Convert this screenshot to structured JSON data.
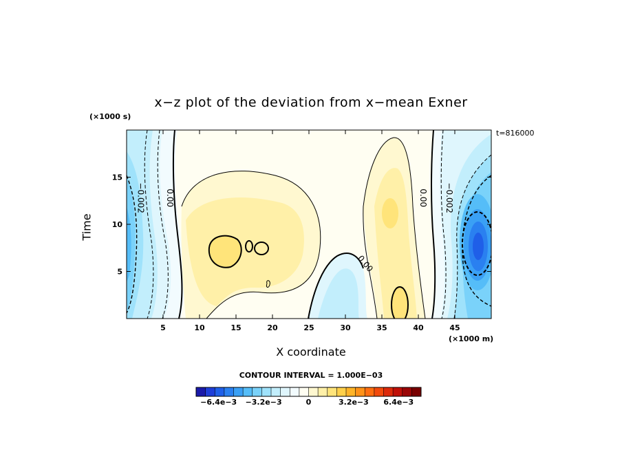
{
  "chart_data": {
    "type": "heatmap",
    "title": "x−z plot of the deviation from x−mean Exner",
    "xlabel": "X coordinate",
    "ylabel": "Time",
    "x_unit_label": "(×1000 m)",
    "y_unit_label": "(×1000 s)",
    "time_label": "t=816000",
    "xlim": [
      0,
      50
    ],
    "ylim": [
      0,
      20
    ],
    "xticks": [
      "5",
      "10",
      "15",
      "20",
      "25",
      "30",
      "35",
      "40",
      "45"
    ],
    "yticks": [
      "5",
      "10",
      "15"
    ],
    "contour_interval_label": "CONTOUR INTERVAL = 1.000E−03",
    "contour_labels": [
      {
        "text": "−0.002",
        "x": 1.9,
        "y": 12.8
      },
      {
        "text": "0.00",
        "x": 5.9,
        "y": 12.8
      },
      {
        "text": "0.00",
        "x": 32.7,
        "y": 5.8
      },
      {
        "text": "0.00",
        "x": 40.6,
        "y": 12.8
      },
      {
        "text": "−0.002",
        "x": 44.2,
        "y": 12.8
      }
    ],
    "colorbar": {
      "range": [
        -0.008,
        0.008
      ],
      "tick_labels": [
        "−6.4e−3",
        "−3.2e−3",
        "0",
        "3.2e−3",
        "6.4e−3"
      ],
      "colors": [
        "#1a1aaa",
        "#1e3ed8",
        "#1f5fe8",
        "#2a80f0",
        "#3aa0f5",
        "#55bdf8",
        "#7ad2fa",
        "#9fe2fb",
        "#c2eefc",
        "#dff6fd",
        "#f2fbfe",
        "#fffef2",
        "#fff8d0",
        "#fff0a8",
        "#ffe47a",
        "#ffd04a",
        "#ffb428",
        "#ff9218",
        "#ff6e10",
        "#f24a0c",
        "#dc2a0a",
        "#c01008",
        "#9a0606",
        "#780000"
      ]
    }
  }
}
